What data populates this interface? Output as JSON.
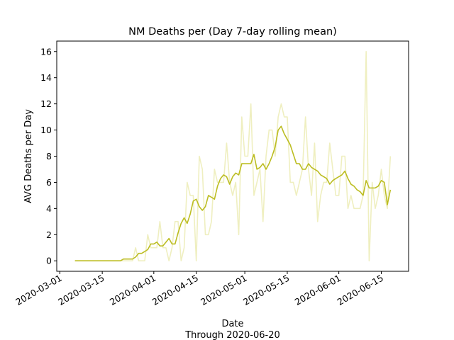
{
  "chart_data": {
    "type": "line",
    "title": "NM Deaths per (Day 7-day rolling mean)",
    "xlabel": "Date",
    "xlabel_sub": "Through 2020-06-20",
    "ylabel": "AVG Deaths per Day",
    "xlim": [
      "2020-02-29",
      "2020-06-24"
    ],
    "ylim": [
      -0.8,
      16.8
    ],
    "yticks": [
      0,
      2,
      4,
      6,
      8,
      10,
      12,
      14,
      16
    ],
    "xticks": [
      "2020-03-01",
      "2020-03-15",
      "2020-04-01",
      "2020-04-15",
      "2020-05-01",
      "2020-05-15",
      "2020-06-01",
      "2020-06-15"
    ],
    "grid": false,
    "start_date": "2020-03-06",
    "series": [
      {
        "role": "daily",
        "color": "#efefc0",
        "values": [
          0,
          0,
          0,
          0,
          0,
          0,
          0,
          0,
          0,
          0,
          0,
          0,
          0,
          0,
          0,
          0,
          0,
          0,
          0,
          0,
          1,
          0,
          0,
          0,
          2,
          1,
          1,
          1,
          3,
          1,
          1,
          0,
          1,
          3,
          3,
          0,
          1,
          6,
          5,
          5,
          0,
          8,
          7,
          2,
          2,
          3,
          7,
          6,
          6,
          6,
          9,
          6,
          5,
          6,
          2,
          11,
          8,
          8,
          12,
          5,
          6,
          7,
          3,
          8,
          10,
          10,
          8,
          11,
          12,
          11,
          11,
          6,
          6,
          5,
          6,
          7,
          11,
          7,
          5,
          9,
          3,
          5,
          6,
          6,
          9,
          7,
          5,
          5,
          8,
          8,
          4,
          5,
          4,
          4,
          4,
          5,
          16,
          0,
          6,
          4,
          5,
          7,
          5,
          4,
          8
        ]
      },
      {
        "role": "rolling-mean",
        "color": "#bcbd22",
        "values": [
          0,
          0,
          0,
          0,
          0,
          0,
          0,
          0,
          0,
          0,
          0,
          0,
          0,
          0,
          0,
          0,
          0.14,
          0.14,
          0.14,
          0.14,
          0.29,
          0.57,
          0.57,
          0.71,
          0.86,
          1.29,
          1.29,
          1.43,
          1.14,
          1.14,
          1.43,
          1.71,
          1.29,
          1.29,
          2.14,
          2.86,
          3.29,
          2.86,
          3.57,
          4.57,
          4.71,
          4.14,
          3.86,
          4.14,
          5,
          4.86,
          4.71,
          5.71,
          6.29,
          6.57,
          6.43,
          5.86,
          6.43,
          6.71,
          6.57,
          7.43,
          7.43,
          7.43,
          7.43,
          8.14,
          7,
          7.14,
          7.43,
          7,
          7.43,
          8,
          8.71,
          10,
          10.29,
          9.71,
          9.29,
          8.86,
          8.14,
          7.43,
          7.43,
          7,
          7,
          7.43,
          7.14,
          7,
          6.86,
          6.57,
          6.43,
          6.29,
          5.86,
          6.14,
          6.29,
          6.43,
          6.57,
          6.86,
          6.29,
          5.86,
          5.71,
          5.43,
          5.29,
          5,
          6.14,
          5.57,
          5.57,
          5.57,
          5.71,
          6.14,
          6,
          4.29,
          5.43
        ]
      }
    ]
  }
}
